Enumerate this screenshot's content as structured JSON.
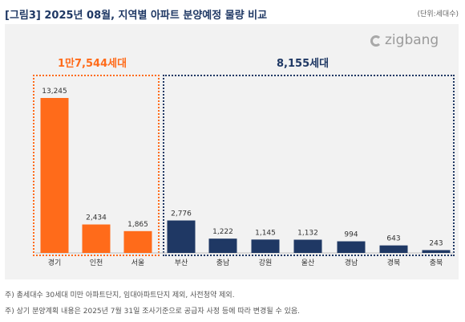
{
  "header": {
    "title": "[그림3] 2025년 08월, 지역별 아파트 분양예정 물량 비교",
    "unit": "(단위:세대수)"
  },
  "logo": {
    "text": "zigbang",
    "icon": "zigbang-logo-icon"
  },
  "groups": {
    "metro": {
      "label": "1만7,544세대",
      "color": "#ff6b1a"
    },
    "local": {
      "label": "8,155세대",
      "color": "#1f3864"
    }
  },
  "chart_data": {
    "type": "bar",
    "categories": [
      "경기",
      "인천",
      "서울",
      "부산",
      "충남",
      "강원",
      "울산",
      "경남",
      "경북",
      "충북"
    ],
    "values": [
      13245,
      2434,
      1865,
      2776,
      1222,
      1145,
      1132,
      994,
      643,
      243
    ],
    "value_labels": [
      "13,245",
      "2,434",
      "1,865",
      "2,776",
      "1,222",
      "1,145",
      "1,132",
      "994",
      "643",
      "243"
    ],
    "bar_colors": [
      "#ff6b1a",
      "#ff6b1a",
      "#ff6b1a",
      "#1f3864",
      "#1f3864",
      "#1f3864",
      "#1f3864",
      "#1f3864",
      "#1f3864",
      "#1f3864"
    ],
    "title": "",
    "xlabel": "",
    "ylabel": "",
    "grid": false
  },
  "notes": [
    "주) 총세대수 30세대 미만 아파트단지, 임대아파트단지 제외, 사전청약 제외.",
    "주) 상기 분양계획 내용은 2025년 7월 31일 조사기준으로 공급자 사정 등에 따라 변경될 수 있음."
  ]
}
